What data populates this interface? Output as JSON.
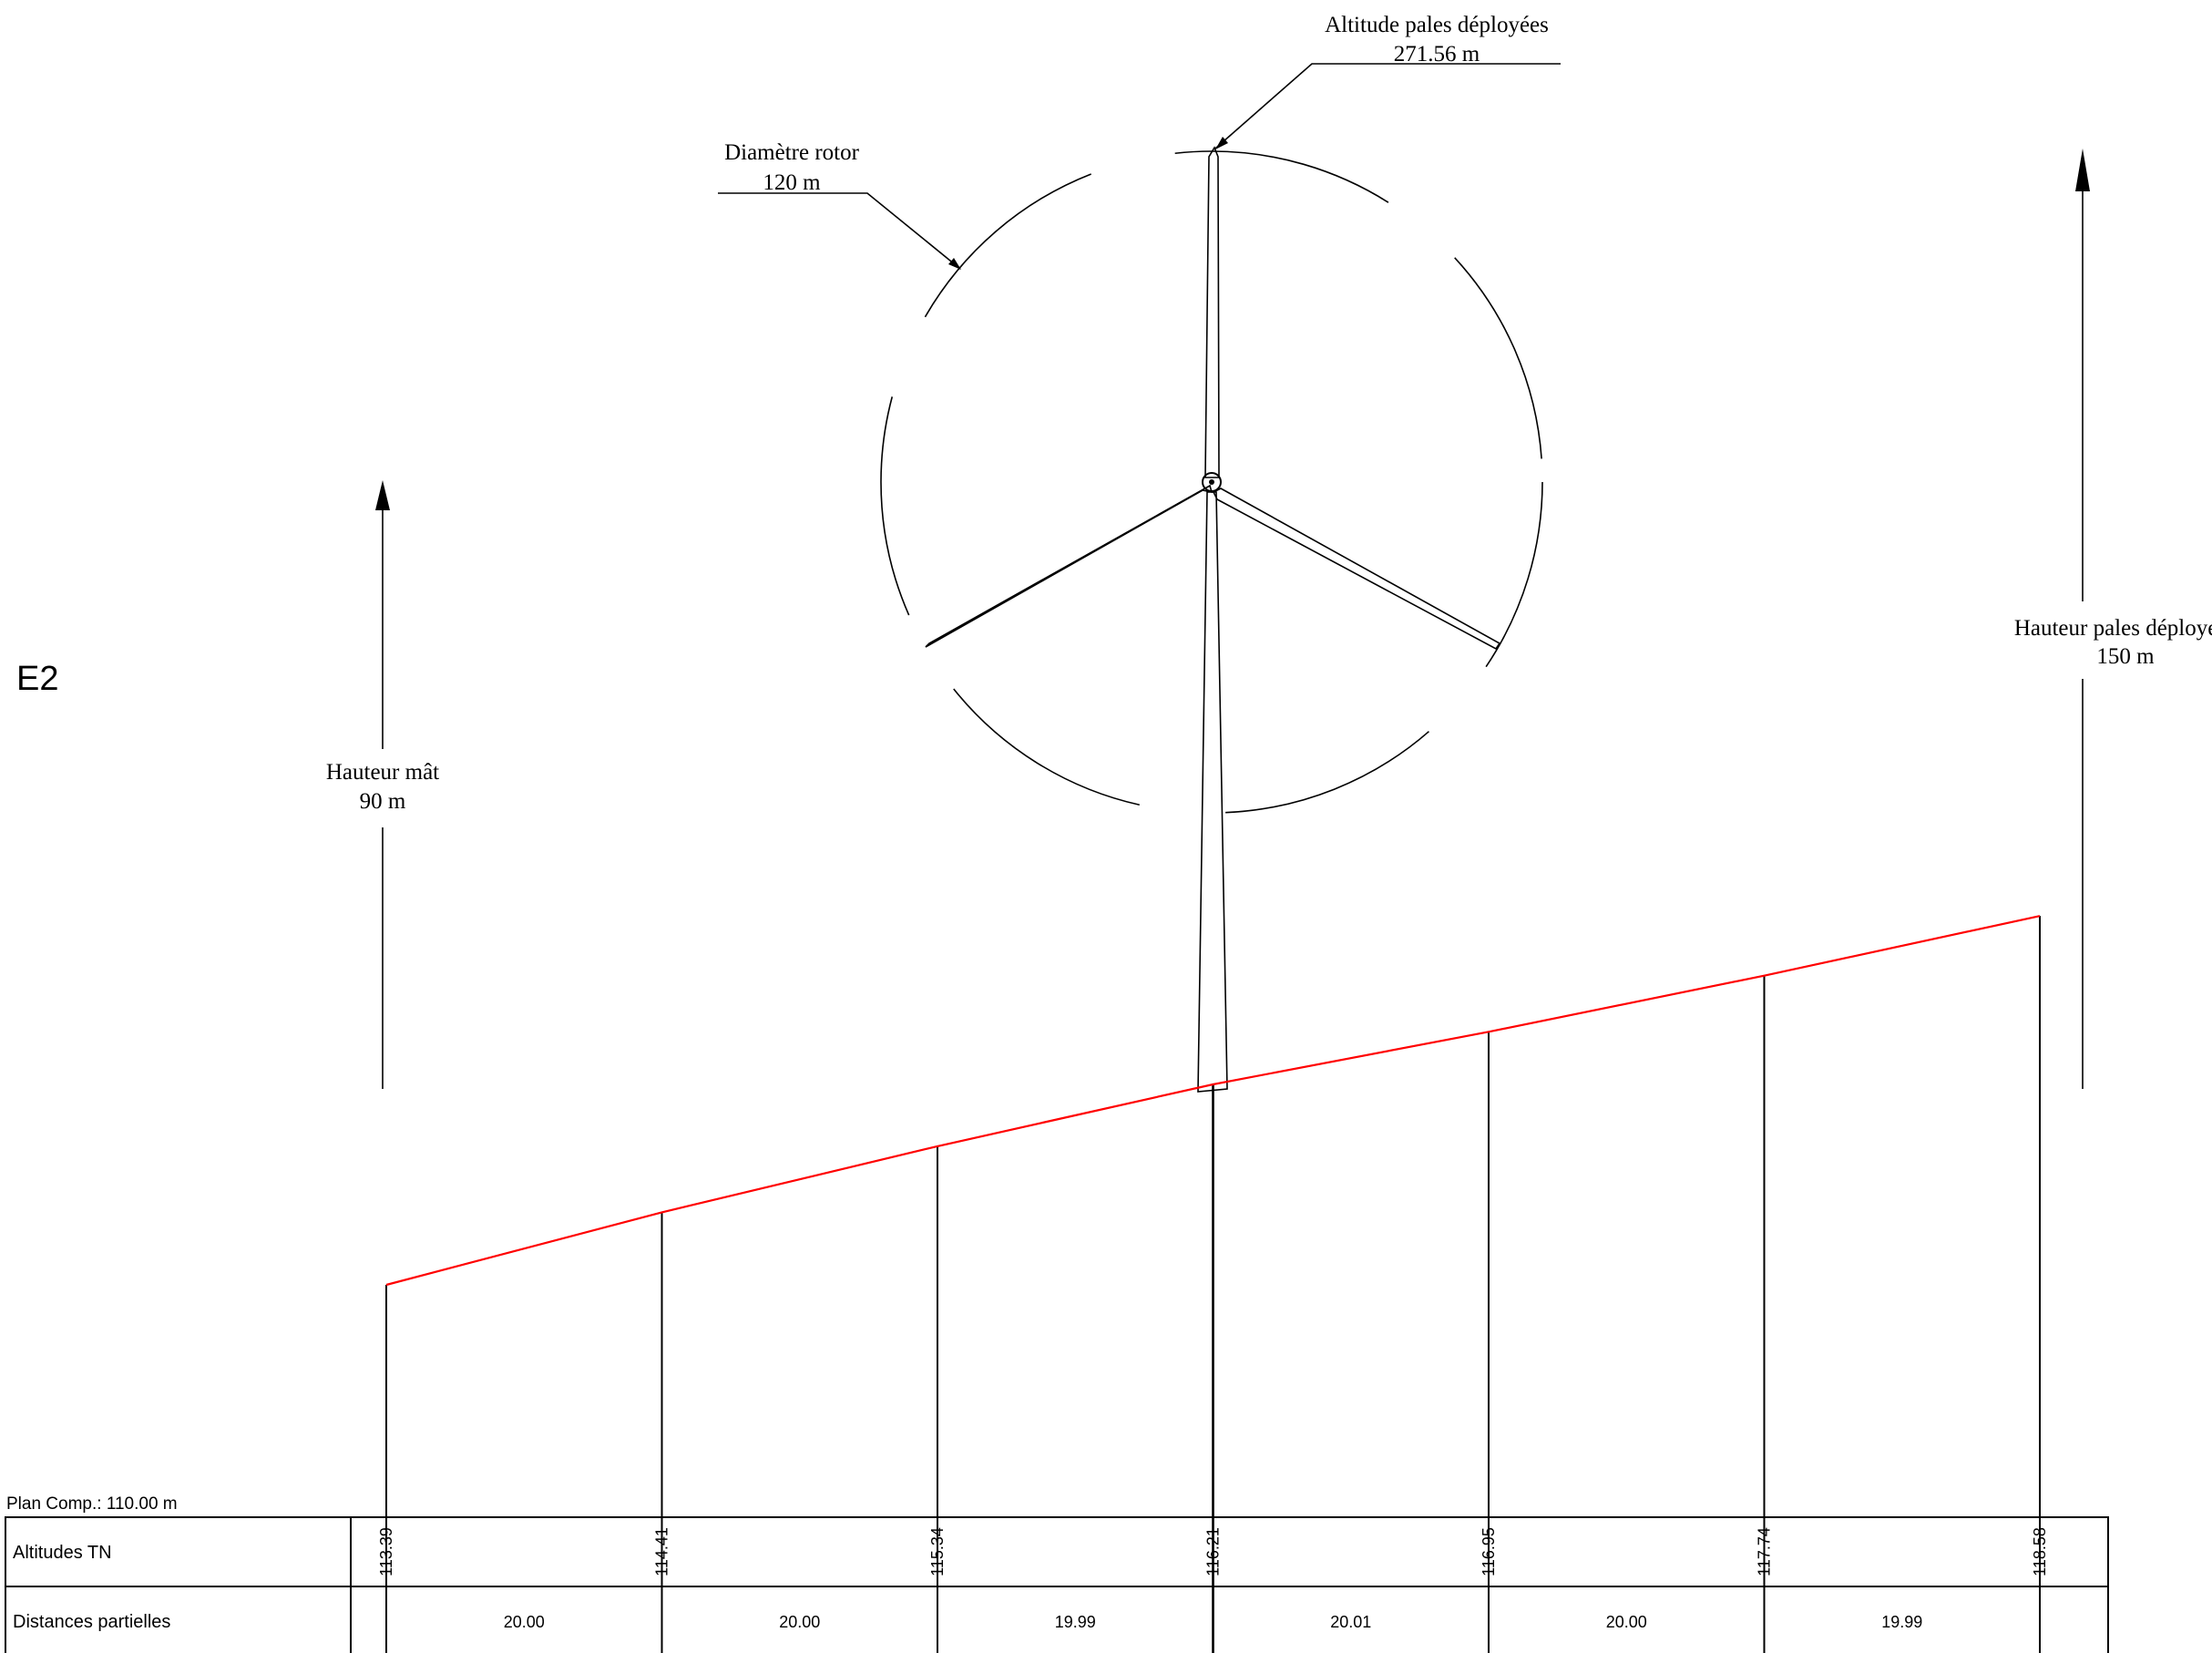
{
  "turbine_id": "E2",
  "annotations": {
    "altitude_tip_label": "Altitude pales déployées",
    "altitude_tip_value": "271.56 m",
    "rotor_label": "Diamètre rotor",
    "rotor_value": "120 m",
    "mast_label": "Hauteur mât",
    "mast_value": "90 m",
    "tip_height_label": "Hauteur pales déployées",
    "tip_height_value": "150 m"
  },
  "profile": {
    "plan_comp": "Plan Comp.: 110.00 m",
    "row_altitudes_label": "Altitudes TN",
    "row_distances_label": "Distances partielles",
    "altitudes": [
      "113.39",
      "114.41",
      "115.34",
      "116.21",
      "116.95",
      "117.74",
      "118.58"
    ],
    "highlight_index": 3,
    "distances": [
      "20.00",
      "20.00",
      "19.99",
      "20.01",
      "20.00",
      "19.99"
    ]
  },
  "colors": {
    "terrain": "#ff0000",
    "highlight": "#ff0000",
    "lines": "#000000"
  }
}
